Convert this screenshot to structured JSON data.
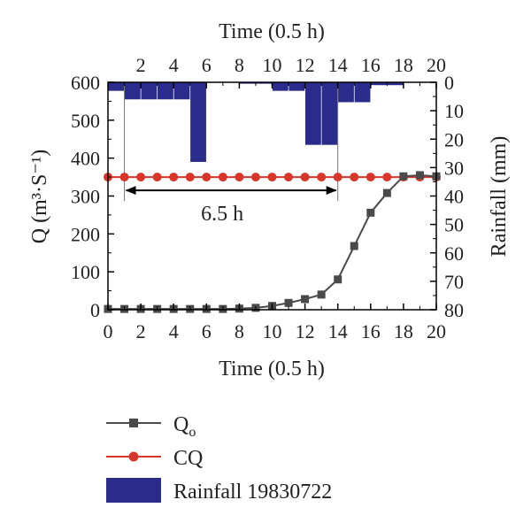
{
  "chart_data": {
    "type": "line",
    "x_axis_bottom": {
      "label": "Time (0.5 h)",
      "range": [
        0,
        20
      ],
      "ticks": [
        0,
        2,
        4,
        6,
        8,
        10,
        12,
        14,
        16,
        18,
        20
      ]
    },
    "x_axis_top": {
      "label": "Time (0.5 h)",
      "range": [
        0,
        20
      ],
      "ticks": [
        2,
        4,
        6,
        8,
        10,
        12,
        14,
        16,
        18,
        20
      ]
    },
    "y_axis_left": {
      "label": "Q (m³·S⁻¹)",
      "range": [
        0,
        600
      ],
      "ticks": [
        0,
        100,
        200,
        300,
        400,
        500,
        600
      ]
    },
    "y_axis_right": {
      "label": "Rainfall (mm)",
      "range": [
        0,
        80
      ],
      "inverted": true,
      "ticks": [
        0,
        10,
        20,
        30,
        40,
        50,
        60,
        70,
        80
      ]
    },
    "series": [
      {
        "name": "Q",
        "name_subscript": "o",
        "type": "line",
        "marker": "square",
        "color": "#4a4a4a",
        "x": [
          0,
          1,
          2,
          3,
          4,
          5,
          6,
          7,
          8,
          9,
          10,
          11,
          12,
          13,
          14,
          15,
          16,
          17,
          18,
          19,
          20
        ],
        "y": [
          2,
          2,
          2,
          2,
          2,
          2,
          2,
          2,
          3,
          5,
          10,
          18,
          28,
          40,
          80,
          168,
          256,
          308,
          352,
          355,
          352
        ]
      },
      {
        "name": "CQ",
        "type": "line",
        "marker": "circle",
        "color": "#d9362b",
        "x": [
          0,
          1,
          2,
          3,
          4,
          5,
          6,
          7,
          8,
          9,
          10,
          11,
          12,
          13,
          14,
          15,
          16,
          17,
          18,
          19,
          20
        ],
        "y": [
          350,
          350,
          350,
          350,
          350,
          350,
          350,
          350,
          350,
          350,
          350,
          350,
          350,
          350,
          350,
          350,
          350,
          350,
          350,
          350,
          350
        ]
      },
      {
        "name": "Rainfall 19830722",
        "type": "bar",
        "axis": "right",
        "color": "#2b2b8c",
        "x": [
          0.5,
          1.5,
          2.5,
          3.5,
          4.5,
          5.5,
          6.5,
          7.5,
          8.5,
          9.5,
          10.5,
          11.5,
          12.5,
          13.5,
          14.5,
          15.5,
          16.5,
          17.5,
          18.5,
          19.5
        ],
        "y": [
          3,
          6,
          6,
          6,
          6,
          28,
          0,
          0,
          0.5,
          0.5,
          3,
          3,
          22,
          22,
          7,
          7,
          1,
          1,
          0,
          0
        ]
      }
    ],
    "annotation": {
      "text": "6.5 h",
      "from_x": 1,
      "to_x": 14,
      "at_y": 350
    },
    "legend": {
      "position": "bottom-left"
    }
  }
}
